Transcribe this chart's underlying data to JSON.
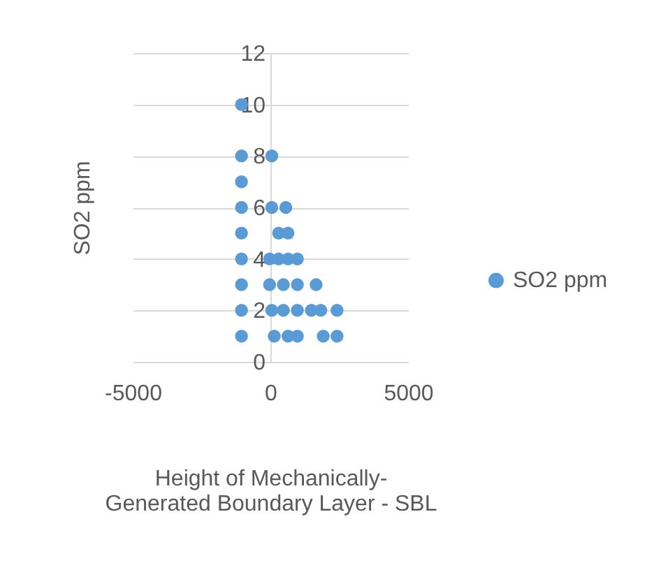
{
  "chart_data": {
    "type": "scatter",
    "xlabel": "Height of Mechanically-Generated Boundary Layer - SBL",
    "ylabel": "SO2 ppm",
    "xlim": [
      -5000,
      5000
    ],
    "xticks": [
      -5000,
      0,
      5000
    ],
    "ylim": [
      0,
      12
    ],
    "yticks": [
      0,
      2,
      4,
      6,
      8,
      10,
      12
    ],
    "grid": "y",
    "legend": "right",
    "marker": "circle",
    "series": [
      {
        "name": "SO2 ppm",
        "color": "#5b9bd5",
        "x": [
          -1050,
          -1050,
          50,
          -1050,
          -1050,
          50,
          560,
          -1050,
          300,
          640,
          -1050,
          -30,
          300,
          640,
          980,
          -1050,
          -30,
          470,
          980,
          1660,
          -1050,
          50,
          470,
          980,
          1490,
          1830,
          2420,
          -1050,
          140,
          640,
          980,
          1920,
          2420
        ],
        "values": [
          10,
          8,
          8,
          7,
          6,
          6,
          6,
          5,
          5,
          5,
          4,
          4,
          4,
          4,
          4,
          3,
          3,
          3,
          3,
          3,
          2,
          2,
          2,
          2,
          2,
          2,
          2,
          1,
          1,
          1,
          1,
          1,
          1
        ]
      }
    ]
  }
}
